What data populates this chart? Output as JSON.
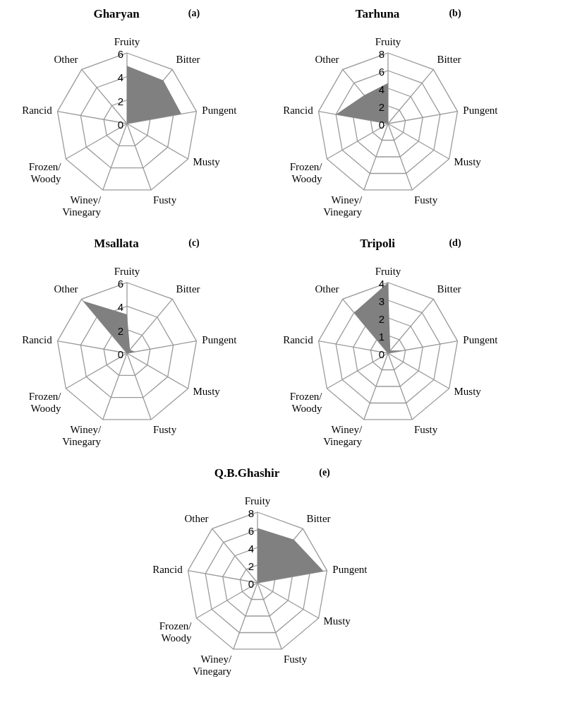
{
  "chart_data": [
    {
      "type": "radar",
      "title": "Gharyan",
      "annotations": [
        "(a)"
      ],
      "categories": [
        "Fruity",
        "Bitter",
        "Pungent",
        "Musty",
        "Fusty",
        "Winey/\nVinegary",
        "Frozen/\nWoody",
        "Rancid",
        "Other"
      ],
      "ylim": [
        0,
        6
      ],
      "yticks": [
        0,
        2,
        4,
        6
      ],
      "grid": true,
      "series": [
        {
          "color": "#808080",
          "values": [
            4.9,
            4.8,
            4.7,
            0,
            0,
            1.2,
            0,
            0,
            0
          ]
        }
      ]
    },
    {
      "type": "radar",
      "title": "Tarhuna",
      "annotations": [
        "(b)"
      ],
      "categories": [
        "Fruity",
        "Bitter",
        "Pungent",
        "Musty",
        "Fusty",
        "Winey/\nVinegary",
        "Frozen/\nWoody",
        "Rancid",
        "Other"
      ],
      "ylim": [
        0,
        8
      ],
      "yticks": [
        0,
        2,
        4,
        6,
        8
      ],
      "grid": true,
      "series": [
        {
          "color": "#808080",
          "values": [
            4.6,
            0,
            0,
            0,
            0,
            0,
            0,
            6.0,
            4.2
          ]
        }
      ]
    },
    {
      "type": "radar",
      "title": "Msallata",
      "annotations": [
        "(c)"
      ],
      "categories": [
        "Fruity",
        "Bitter",
        "Pungent",
        "Musty",
        "Fusty",
        "Winey/\nVinegary",
        "Frozen/\nWoody",
        "Rancid",
        "Other"
      ],
      "ylim": [
        0,
        6
      ],
      "yticks": [
        0,
        2,
        4,
        6
      ],
      "grid": true,
      "series": [
        {
          "color": "#808080",
          "values": [
            3.3,
            0.4,
            0.7,
            0,
            0,
            0,
            0,
            0,
            5.8
          ]
        }
      ]
    },
    {
      "type": "radar",
      "title": "Tripoli",
      "annotations": [
        "(d)"
      ],
      "categories": [
        "Fruity",
        "Bitter",
        "Pungent",
        "Musty",
        "Fusty",
        "Winey/\nVinegary",
        "Frozen/\nWoody",
        "Rancid",
        "Other"
      ],
      "ylim": [
        0,
        4
      ],
      "yticks": [
        0,
        1,
        2,
        3,
        4
      ],
      "grid": true,
      "series": [
        {
          "color": "#808080",
          "values": [
            4.0,
            0.2,
            0.9,
            0,
            0,
            0,
            0,
            0,
            3.0
          ]
        }
      ]
    },
    {
      "type": "radar",
      "title": "Q.B.Ghashir",
      "annotations": [
        "(e)"
      ],
      "categories": [
        "Fruity",
        "Bitter",
        "Pungent",
        "Musty",
        "Fusty",
        "Winey/\nVinegary",
        "Frozen/\nWoody",
        "Rancid",
        "Other"
      ],
      "ylim": [
        0,
        8
      ],
      "yticks": [
        0,
        2,
        4,
        6,
        8
      ],
      "grid": true,
      "series": [
        {
          "color": "#808080",
          "values": [
            6.2,
            6.4,
            7.6,
            0,
            0,
            0,
            0,
            0,
            0
          ]
        }
      ]
    }
  ]
}
